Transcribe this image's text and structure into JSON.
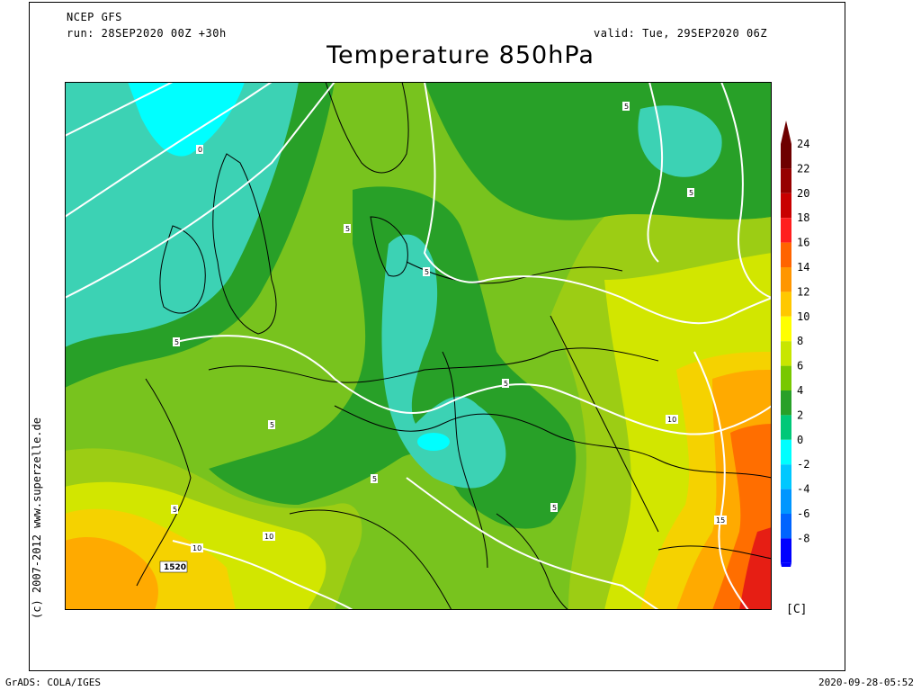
{
  "header": {
    "model": "NCEP GFS",
    "run": "run: 28SEP2020 00Z +30h",
    "valid": "valid: Tue, 29SEP2020 06Z",
    "title": "Temperature 850hPa"
  },
  "side": {
    "copyright": "(c) 2007-2012  www.superzelle.de"
  },
  "footer": {
    "software": "GrADS: COLA/IGES",
    "timestamp": "2020-09-28-05:52"
  },
  "legend": {
    "unit": "[C]",
    "ticks": [
      "24",
      "22",
      "20",
      "18",
      "16",
      "14",
      "12",
      "10",
      "8",
      "6",
      "4",
      "2",
      "0",
      "-2",
      "-4",
      "-6",
      "-8"
    ],
    "colors": [
      "#6e0000",
      "#960000",
      "#c80000",
      "#ff1e1e",
      "#ff6400",
      "#ff9600",
      "#ffc800",
      "#ffff00",
      "#c8e600",
      "#78c800",
      "#28a028",
      "#00c878",
      "#00ffff",
      "#00c8ff",
      "#0096ff",
      "#0064ff",
      "#0000ff"
    ]
  },
  "map": {
    "contour_labels": [
      "0",
      "5",
      "5",
      "5",
      "5",
      "5",
      "5",
      "5",
      "5",
      "5",
      "5",
      "10",
      "10",
      "10",
      "15",
      "1520"
    ],
    "colors": {
      "temp_0": "#00ffff",
      "temp_2": "#3cd2b4",
      "temp_4": "#28a028",
      "temp_6": "#64be1e",
      "temp_8": "#9ccd14",
      "temp_10": "#d2e600",
      "temp_12": "#f5d200",
      "temp_14": "#ffaa00",
      "temp_16": "#ff6e00",
      "temp_18": "#e61e14"
    }
  }
}
